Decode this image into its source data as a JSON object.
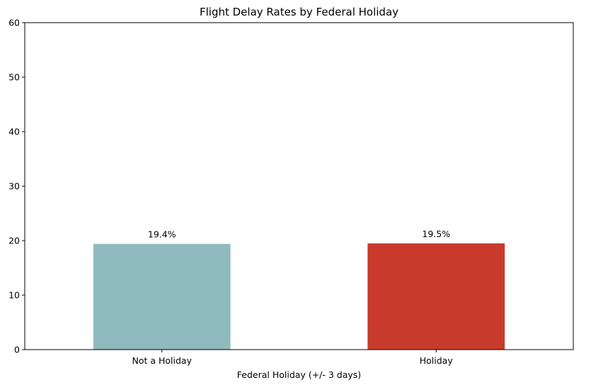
{
  "chart_data": {
    "type": "bar",
    "title": "Flight Delay Rates by Federal Holiday",
    "xlabel": "Federal Holiday (+/- 3 days)",
    "ylabel": "",
    "categories": [
      "Not a Holiday",
      "Holiday"
    ],
    "values": [
      19.4,
      19.5
    ],
    "data_labels": [
      "19.4%",
      "19.5%"
    ],
    "bar_colors": [
      "#8fbabd",
      "#c83b2c"
    ],
    "ylim": [
      0,
      60
    ],
    "yticks": [
      0,
      10,
      20,
      30,
      40,
      50,
      60
    ],
    "ytick_labels": [
      "0",
      "10",
      "20",
      "30",
      "40",
      "50",
      "60"
    ],
    "grid": false,
    "legend": "none"
  }
}
